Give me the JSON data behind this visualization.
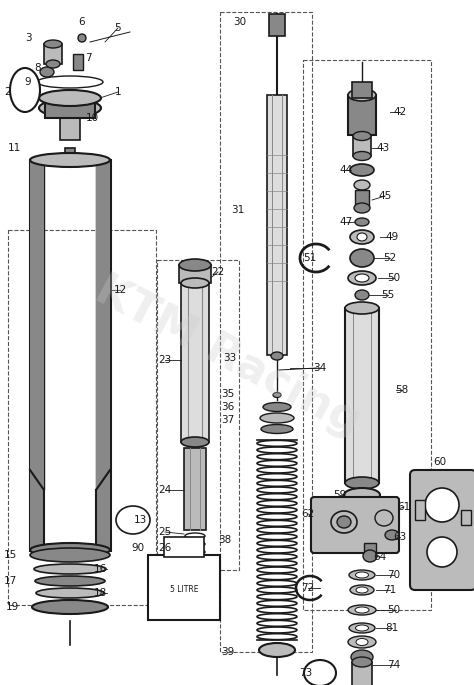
{
  "bg": "#ffffff",
  "lc": "#1a1a1a",
  "dc": "#555555",
  "gray1": "#888888",
  "gray2": "#bbbbbb",
  "gray3": "#dddddd",
  "wm_color": "#cccccc",
  "fig_w": 4.74,
  "fig_h": 6.85,
  "dpi": 100
}
